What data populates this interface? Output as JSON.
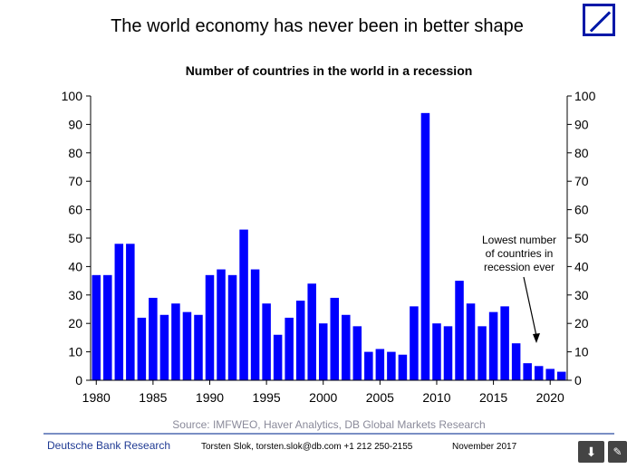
{
  "header": {
    "headline": "The world economy has never been in better shape",
    "logo_icon": "deutsche-bank-logo"
  },
  "chart_data": {
    "type": "bar",
    "title": "Number of countries in the world in a recession",
    "xlabel": "",
    "ylabel": "",
    "ylim": [
      0,
      100
    ],
    "y_ticks": [
      "0",
      "10",
      "20",
      "30",
      "40",
      "50",
      "60",
      "70",
      "80",
      "90",
      "100"
    ],
    "x_tick_labels": [
      "1980",
      "1985",
      "1990",
      "1995",
      "2000",
      "2005",
      "2010",
      "2015",
      "2020"
    ],
    "categories": [
      1980,
      1981,
      1982,
      1983,
      1984,
      1985,
      1986,
      1987,
      1988,
      1989,
      1990,
      1991,
      1992,
      1993,
      1994,
      1995,
      1996,
      1997,
      1998,
      1999,
      2000,
      2001,
      2002,
      2003,
      2004,
      2005,
      2006,
      2007,
      2008,
      2009,
      2010,
      2011,
      2012,
      2013,
      2014,
      2015,
      2016,
      2017,
      2018,
      2019,
      2020,
      2021
    ],
    "values": [
      37,
      37,
      48,
      48,
      22,
      29,
      23,
      27,
      24,
      23,
      37,
      39,
      37,
      53,
      39,
      27,
      16,
      22,
      28,
      34,
      20,
      29,
      23,
      19,
      10,
      11,
      10,
      9,
      26,
      94,
      20,
      19,
      35,
      27,
      19,
      24,
      26,
      13,
      6,
      5,
      4,
      3
    ],
    "bar_color": "#0000FF",
    "grid": false,
    "annotation": [
      "Lowest number",
      "of countries in",
      "recession ever"
    ]
  },
  "footer": {
    "source": "Source: IMFWEO, Haver Analytics, DB Global Markets Research",
    "brand": "Deutsche Bank Research",
    "author": "Torsten Slok, torsten.slok@db.com  +1 212 250-2155",
    "date": "November 2017"
  },
  "controls": {
    "download_icon": "download-icon",
    "download_glyph": "⬇",
    "edit_icon": "edit-icon",
    "edit_glyph": "✎"
  }
}
